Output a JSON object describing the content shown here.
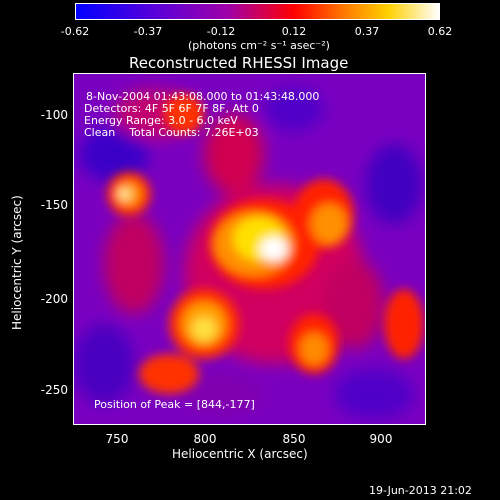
{
  "colorbar": {
    "ticks": [
      "-0.62",
      "-0.37",
      "-0.12",
      "0.12",
      "0.37",
      "0.62"
    ],
    "units": "(photons cm⁻² s⁻¹ asec⁻²)"
  },
  "title": "Reconstructed RHESSI Image",
  "info": {
    "line1": "8-Nov-2004 01:43:08.000 to 01:43:48.000",
    "line2": "Detectors: 4F 5F 6F 7F 8F, Att 0",
    "line3": "Energy Range: 3.0 - 6.0 keV",
    "line4": "Clean    Total Counts: 7.26E+03",
    "peak": "Position of Peak = [844,-177]"
  },
  "axes": {
    "xlabel": "Heliocentric X (arcsec)",
    "ylabel": "Heliocentric Y (arcsec)",
    "xticks": [
      "750",
      "800",
      "850",
      "900"
    ],
    "yticks": [
      "-100",
      "-150",
      "-200",
      "-250"
    ]
  },
  "footer": {
    "timestamp": "19-Jun-2013 21:02"
  },
  "colors": {
    "background": "#000000",
    "low": "#5a00d8",
    "mid": "#ff0000",
    "high": "#ffffff"
  }
}
